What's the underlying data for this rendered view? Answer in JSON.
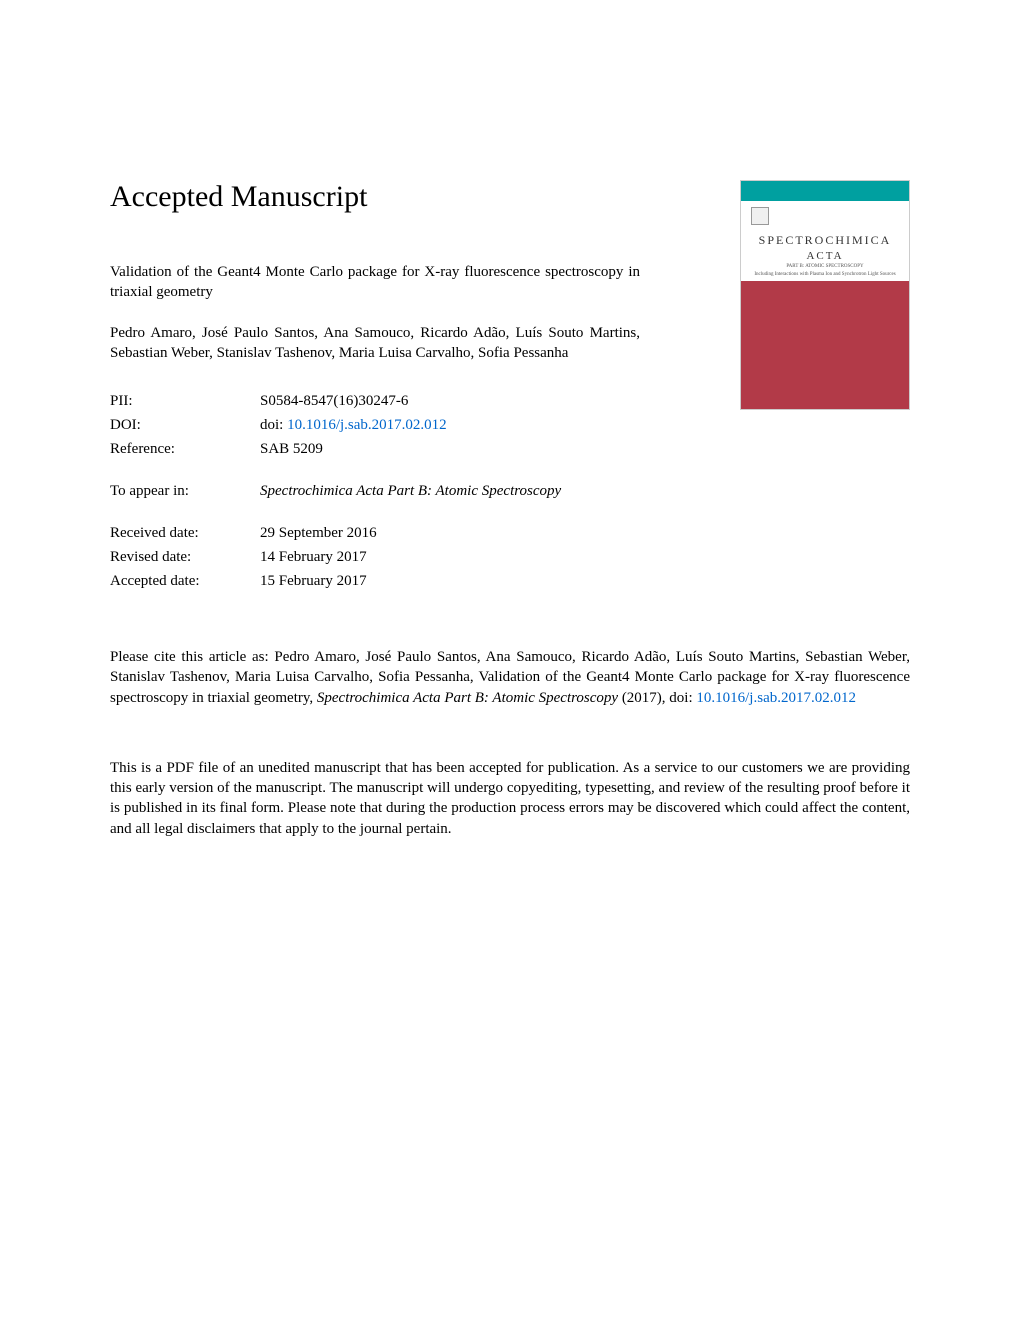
{
  "heading": "Accepted Manuscript",
  "title": "Validation of the Geant4 Monte Carlo package for X-ray fluorescence spectroscopy in triaxial geometry",
  "authors": "Pedro Amaro, José Paulo Santos, Ana Samouco, Ricardo Adão, Luís Souto Martins, Sebastian Weber, Stanislav Tashenov, Maria Luisa Carvalho, Sofia Pessanha",
  "meta": {
    "pii_label": "PII:",
    "pii_value": "S0584-8547(16)30247-6",
    "doi_label": "DOI:",
    "doi_prefix": "doi: ",
    "doi_link": "10.1016/j.sab.2017.02.012",
    "ref_label": "Reference:",
    "ref_value": "SAB 5209",
    "appear_label": "To appear in:",
    "appear_value": "Spectrochimica Acta Part B: Atomic Spectroscopy",
    "received_label": "Received date:",
    "received_value": "29 September 2016",
    "revised_label": "Revised date:",
    "revised_value": "14 February 2017",
    "accepted_label": "Accepted date:",
    "accepted_value": "15 February 2017"
  },
  "citation": {
    "prefix": "Please cite this article as: Pedro Amaro, José Paulo Santos, Ana Samouco, Ricardo Adão, Luís Souto Martins, Sebastian Weber, Stanislav Tashenov, Maria Luisa Carvalho, Sofia Pessanha, Validation of the Geant4 Monte Carlo package for X-ray fluorescence spectroscopy in triaxial geometry, ",
    "journal": "Spectrochimica Acta Part B: Atomic Spectroscopy",
    "year": " (2017), doi: ",
    "doi_link": "10.1016/j.sab.2017.02.012"
  },
  "disclaimer": "This is a PDF file of an unedited manuscript that has been accepted for publication. As a service to our customers we are providing this early version of the manuscript. The manuscript will undergo copyediting, typesetting, and review of the resulting proof before it is published in its final form. Please note that during the production process errors may be discovered which could affect the content, and all legal disclaimers that apply to the journal pertain.",
  "cover": {
    "journal_name": "SPECTROCHIMICA",
    "acta": "ACTA",
    "subtitle1": "PART B: ATOMIC SPECTROSCOPY",
    "subtitle2": "Including Interactions with Plasma Ion and Synchrotron Light Sources"
  },
  "colors": {
    "link": "#0066cc",
    "cover_red": "#b23a48",
    "cover_teal": "#00a0a0",
    "text": "#000000",
    "background": "#ffffff"
  }
}
